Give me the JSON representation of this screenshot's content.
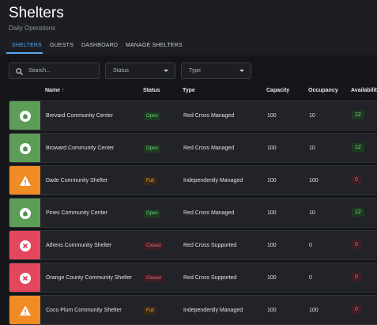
{
  "header": {
    "title": "Shelters",
    "subtitle": "Daily Operations"
  },
  "tabs": [
    {
      "label": "SHELTERS",
      "active": true
    },
    {
      "label": "GUESTS",
      "active": false
    },
    {
      "label": "DASHBOARD",
      "active": false
    },
    {
      "label": "MANAGE SHELTERS",
      "active": false
    }
  ],
  "filters": {
    "search": "Search...",
    "status": "Status",
    "type": "Type"
  },
  "table": {
    "columns": [
      "Name",
      "Status",
      "Type",
      "Capacity",
      "Occupancy",
      "Availability"
    ],
    "rows": [
      [
        "Brevard Community Center",
        "Open",
        "Red Cross Managed",
        100,
        10,
        12
      ],
      [
        "Broward Community Center",
        "Open",
        "Red Cross Managed",
        100,
        10,
        12
      ],
      [
        "Dade Community Shelter",
        "Full",
        "Independently Managed",
        100,
        100,
        0
      ],
      [
        "Pines Community Center",
        "Open",
        "Red Cross Managed",
        100,
        10,
        12
      ],
      [
        "Athens Community Shelter",
        "Closed",
        "Red Cross Supported",
        100,
        0,
        0
      ],
      [
        "Orange County Community Shelter",
        "Closed",
        "Red Cross Supported",
        100,
        0,
        0
      ],
      [
        "Coco Plum Community Shelter",
        "Full",
        "Independently Managed",
        100,
        100,
        0
      ]
    ]
  }
}
